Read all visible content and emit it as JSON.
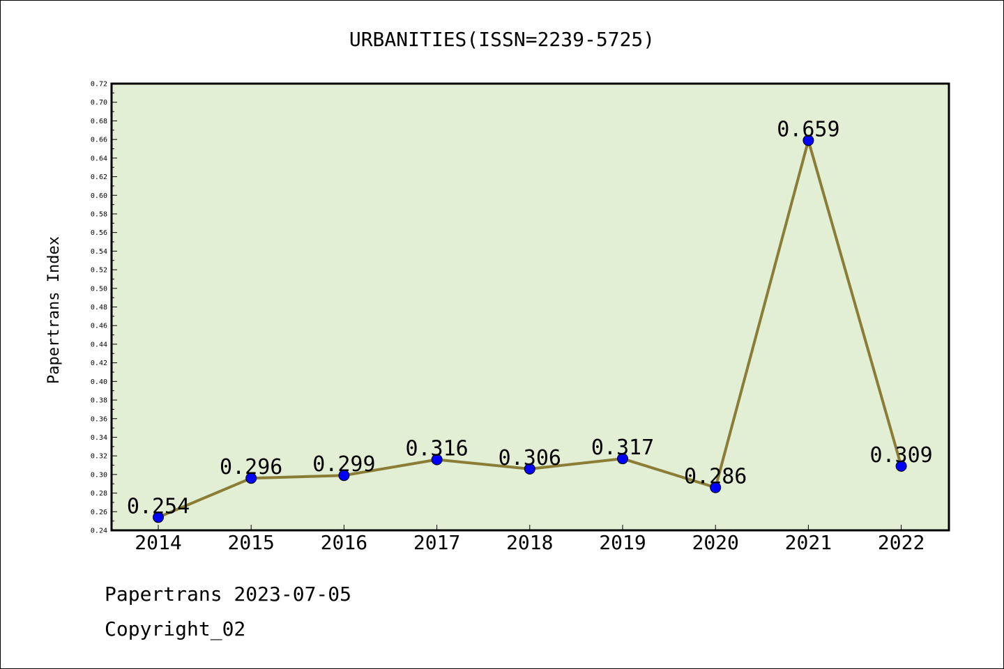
{
  "chart_data": {
    "type": "line",
    "title": "URBANITIES(ISSN=2239-5725)",
    "xlabel": "",
    "ylabel": "Papertrans Index",
    "categories": [
      "2014",
      "2015",
      "2016",
      "2017",
      "2018",
      "2019",
      "2020",
      "2021",
      "2022"
    ],
    "values": [
      0.254,
      0.296,
      0.299,
      0.316,
      0.306,
      0.317,
      0.286,
      0.659,
      0.309
    ],
    "data_labels": [
      "0.254",
      "0.296",
      "0.299",
      "0.316",
      "0.306",
      "0.317",
      "0.286",
      "0.659",
      "0.309"
    ],
    "ylim": [
      0.24,
      0.72
    ],
    "yticks": [
      "0.24",
      "0.26",
      "0.28",
      "0.30",
      "0.32",
      "0.34",
      "0.36",
      "0.38",
      "0.40",
      "0.42",
      "0.44",
      "0.46",
      "0.48",
      "0.50",
      "0.52",
      "0.54",
      "0.56",
      "0.58",
      "0.60",
      "0.62",
      "0.64",
      "0.66",
      "0.68",
      "0.70",
      "0.72"
    ],
    "grid": false,
    "legend": "none",
    "colors": {
      "plot_background": "#e2efd5",
      "line": "#8b7d35",
      "marker": "#0000ff"
    }
  },
  "footer": {
    "line1": "Papertrans 2023-07-05",
    "line2": "Copyright_02"
  }
}
